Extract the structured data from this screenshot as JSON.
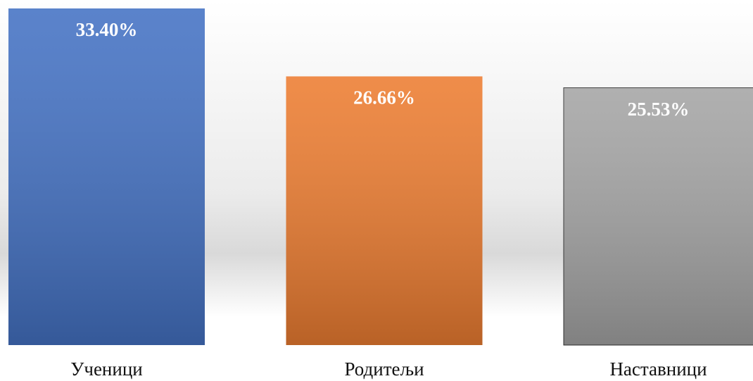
{
  "chart_data": {
    "type": "bar",
    "categories": [
      "Ученици",
      "Родитељи",
      "Наставници"
    ],
    "values": [
      33.4,
      26.66,
      25.53
    ],
    "value_labels": [
      "33.40%",
      "26.66%",
      "25.53%"
    ],
    "colors": [
      "#4472c4",
      "#ed7d31",
      "#a5a5a5"
    ],
    "grid": false
  }
}
